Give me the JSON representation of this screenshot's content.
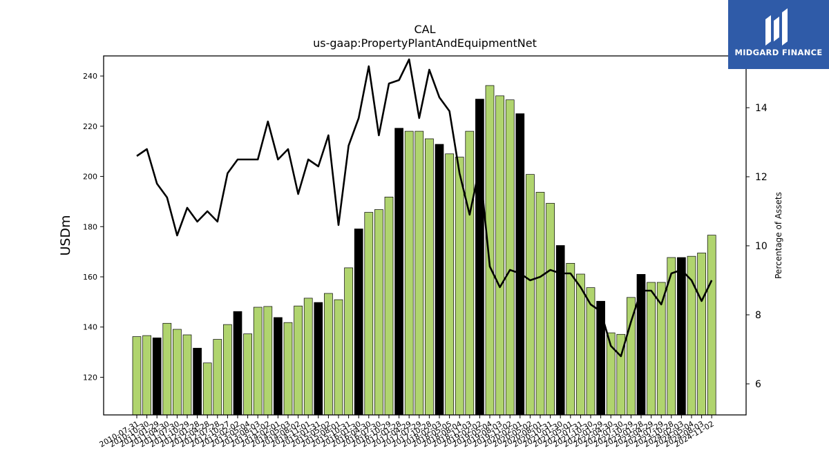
{
  "brand": {
    "name": "MIDGARD FINANCE",
    "background": "#2f5ba8"
  },
  "colors": {
    "bar_green": "#b0d46e",
    "bar_black": "#000000",
    "line": "#000000"
  },
  "chart_data": {
    "type": "bar",
    "title": "CAL",
    "subtitle": "us-gaap:PropertyPlantAndEquipmentNet",
    "ylabel": "USDm",
    "ylabel_right": "Percentage of Assets",
    "ylim": [
      105,
      248
    ],
    "ylim_right": [
      5.1,
      15.5
    ],
    "yticks": [
      120,
      140,
      160,
      180,
      200,
      220,
      240
    ],
    "yticks_right": [
      6,
      8,
      10,
      12,
      14
    ],
    "grid": false,
    "categories": [
      "2010-07-31",
      "2010-10-30",
      "2011-01-29",
      "2011-04-30",
      "2011-07-30",
      "2011-10-29",
      "2012-01-28",
      "2012-04-28",
      "2012-07-28",
      "2012-10-27",
      "2013-02-02",
      "2013-05-04",
      "2013-08-03",
      "2013-11-02",
      "2014-02-01",
      "2014-05-03",
      "2014-08-02",
      "2014-11-01",
      "2015-01-31",
      "2015-05-02",
      "2015-08-01",
      "2015-10-31",
      "2016-01-30",
      "2016-04-30",
      "2016-07-30",
      "2016-10-29",
      "2017-01-28",
      "2017-04-29",
      "2017-07-29",
      "2017-10-28",
      "2018-02-03",
      "2018-05-05",
      "2018-08-04",
      "2018-11-03",
      "2019-02-02",
      "2019-05-04",
      "2019-08-03",
      "2019-11-02",
      "2020-02-01",
      "2020-05-02",
      "2020-08-01",
      "2020-10-31",
      "2021-01-30",
      "2021-05-01",
      "2021-07-31",
      "2021-10-30",
      "2022-01-29",
      "2022-04-30",
      "2022-07-30",
      "2022-10-29",
      "2023-01-28",
      "2023-04-29",
      "2023-07-29",
      "2023-10-28",
      "2024-02-03",
      "2024-05-04",
      "2024-08-03",
      "2024-11-02"
    ],
    "series": [
      {
        "kind": "bar",
        "values": [
          136.2,
          136.6,
          135.7,
          141.5,
          139.1,
          136.9,
          131.6,
          125.7,
          135.1,
          141.0,
          146.2,
          137.3,
          147.9,
          148.2,
          143.8,
          141.8,
          148.4,
          151.5,
          149.8,
          153.4,
          150.9,
          163.6,
          179.1,
          185.7,
          186.8,
          191.8,
          219.2,
          218.0,
          218.0,
          215.0,
          212.8,
          209.0,
          207.7,
          218.0,
          230.8,
          236.2,
          232.1,
          230.5,
          225.0,
          200.8,
          193.7,
          189.3,
          172.5,
          165.4,
          161.1,
          155.7,
          150.3,
          137.7,
          137.1,
          151.8,
          161.0,
          157.8,
          157.8,
          167.7,
          167.7,
          168.2,
          169.5,
          176.6
        ],
        "highlight": [
          2,
          6,
          10,
          14,
          18,
          22,
          26,
          30,
          34,
          38,
          42,
          46,
          50,
          54
        ]
      },
      {
        "kind": "line",
        "axis": "right",
        "values": [
          12.6,
          12.8,
          11.8,
          11.4,
          10.3,
          11.1,
          10.7,
          11.0,
          10.7,
          12.1,
          12.5,
          12.5,
          12.5,
          13.6,
          12.5,
          12.8,
          11.5,
          12.5,
          12.3,
          13.2,
          10.6,
          12.9,
          13.7,
          15.2,
          13.2,
          14.7,
          14.8,
          15.4,
          13.7,
          15.1,
          14.3,
          13.9,
          12.1,
          10.9,
          12.3,
          9.4,
          8.8,
          9.3,
          9.2,
          9.0,
          9.1,
          9.3,
          9.2,
          9.2,
          8.8,
          8.3,
          8.1,
          7.1,
          6.8,
          7.8,
          8.7,
          8.7,
          8.3,
          9.2,
          9.3,
          9.0,
          8.4,
          9.0
        ]
      }
    ]
  }
}
